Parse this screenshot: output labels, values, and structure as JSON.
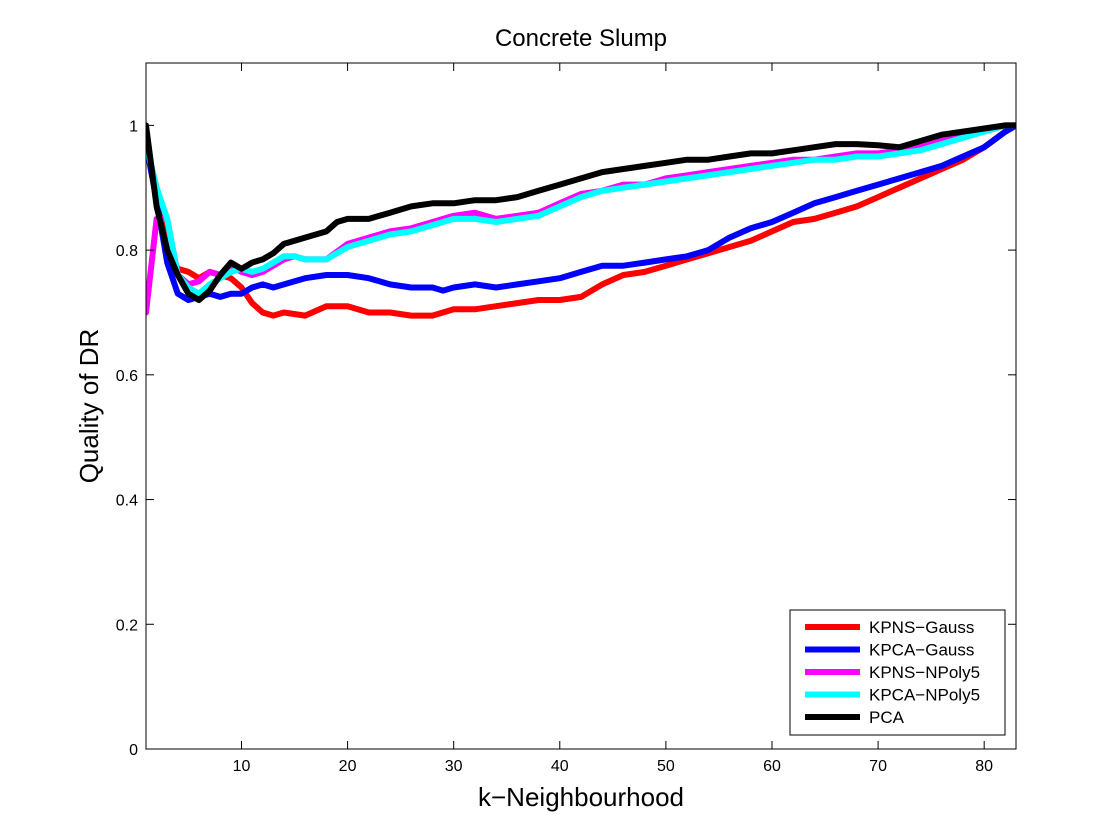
{
  "chart_data": {
    "type": "line",
    "title": "Concrete Slump",
    "xlabel": "k−Neighbourhood",
    "ylabel": "Quality of DR",
    "xlim": [
      1,
      83
    ],
    "ylim": [
      0,
      1.1
    ],
    "xticks": [
      10,
      20,
      30,
      40,
      50,
      60,
      70,
      80
    ],
    "yticks": [
      0,
      0.2,
      0.4,
      0.6,
      0.8,
      1
    ],
    "ytick_labels": [
      "0",
      "0.2",
      "0.4",
      "0.6",
      "0.8",
      "1"
    ],
    "grid": false,
    "legend_position": "bottom-right",
    "series": [
      {
        "name": "KPNS−Gauss",
        "color": "#ff0000",
        "points": [
          [
            1,
            0.97
          ],
          [
            2,
            0.9
          ],
          [
            3,
            0.8
          ],
          [
            4,
            0.77
          ],
          [
            5,
            0.765
          ],
          [
            6,
            0.755
          ],
          [
            7,
            0.765
          ],
          [
            8,
            0.76
          ],
          [
            9,
            0.755
          ],
          [
            10,
            0.74
          ],
          [
            11,
            0.715
          ],
          [
            12,
            0.7
          ],
          [
            13,
            0.695
          ],
          [
            14,
            0.7
          ],
          [
            16,
            0.695
          ],
          [
            18,
            0.71
          ],
          [
            20,
            0.71
          ],
          [
            22,
            0.7
          ],
          [
            24,
            0.7
          ],
          [
            26,
            0.695
          ],
          [
            28,
            0.695
          ],
          [
            30,
            0.705
          ],
          [
            32,
            0.705
          ],
          [
            34,
            0.71
          ],
          [
            36,
            0.715
          ],
          [
            38,
            0.72
          ],
          [
            40,
            0.72
          ],
          [
            42,
            0.725
          ],
          [
            44,
            0.745
          ],
          [
            46,
            0.76
          ],
          [
            48,
            0.765
          ],
          [
            50,
            0.775
          ],
          [
            52,
            0.785
          ],
          [
            54,
            0.795
          ],
          [
            56,
            0.805
          ],
          [
            58,
            0.815
          ],
          [
            60,
            0.83
          ],
          [
            62,
            0.845
          ],
          [
            64,
            0.85
          ],
          [
            66,
            0.86
          ],
          [
            68,
            0.87
          ],
          [
            70,
            0.885
          ],
          [
            72,
            0.9
          ],
          [
            74,
            0.915
          ],
          [
            76,
            0.93
          ],
          [
            78,
            0.945
          ],
          [
            80,
            0.965
          ],
          [
            82,
            0.99
          ],
          [
            83,
            1.0
          ]
        ]
      },
      {
        "name": "KPCA−Gauss",
        "color": "#0000ff",
        "points": [
          [
            1,
            0.97
          ],
          [
            2,
            0.88
          ],
          [
            3,
            0.78
          ],
          [
            4,
            0.73
          ],
          [
            5,
            0.72
          ],
          [
            6,
            0.725
          ],
          [
            7,
            0.73
          ],
          [
            8,
            0.725
          ],
          [
            9,
            0.73
          ],
          [
            10,
            0.73
          ],
          [
            11,
            0.74
          ],
          [
            12,
            0.745
          ],
          [
            13,
            0.74
          ],
          [
            14,
            0.745
          ],
          [
            16,
            0.755
          ],
          [
            18,
            0.76
          ],
          [
            20,
            0.76
          ],
          [
            22,
            0.755
          ],
          [
            24,
            0.745
          ],
          [
            26,
            0.74
          ],
          [
            28,
            0.74
          ],
          [
            29,
            0.735
          ],
          [
            30,
            0.74
          ],
          [
            32,
            0.745
          ],
          [
            34,
            0.74
          ],
          [
            36,
            0.745
          ],
          [
            38,
            0.75
          ],
          [
            40,
            0.755
          ],
          [
            42,
            0.765
          ],
          [
            44,
            0.775
          ],
          [
            46,
            0.775
          ],
          [
            48,
            0.78
          ],
          [
            50,
            0.785
          ],
          [
            52,
            0.79
          ],
          [
            54,
            0.8
          ],
          [
            56,
            0.82
          ],
          [
            58,
            0.835
          ],
          [
            60,
            0.845
          ],
          [
            62,
            0.86
          ],
          [
            64,
            0.875
          ],
          [
            66,
            0.885
          ],
          [
            68,
            0.895
          ],
          [
            70,
            0.905
          ],
          [
            72,
            0.915
          ],
          [
            74,
            0.925
          ],
          [
            76,
            0.935
          ],
          [
            78,
            0.95
          ],
          [
            80,
            0.965
          ],
          [
            82,
            0.99
          ],
          [
            83,
            1.0
          ]
        ]
      },
      {
        "name": "KPNS−NPoly5",
        "color": "#ff00ff",
        "points": [
          [
            1,
            0.7
          ],
          [
            2,
            0.85
          ],
          [
            3,
            0.85
          ],
          [
            4,
            0.76
          ],
          [
            5,
            0.745
          ],
          [
            6,
            0.75
          ],
          [
            7,
            0.765
          ],
          [
            8,
            0.76
          ],
          [
            9,
            0.775
          ],
          [
            10,
            0.765
          ],
          [
            11,
            0.76
          ],
          [
            12,
            0.765
          ],
          [
            13,
            0.775
          ],
          [
            14,
            0.785
          ],
          [
            15,
            0.79
          ],
          [
            16,
            0.785
          ],
          [
            18,
            0.785
          ],
          [
            20,
            0.81
          ],
          [
            22,
            0.82
          ],
          [
            24,
            0.83
          ],
          [
            26,
            0.835
          ],
          [
            28,
            0.845
          ],
          [
            30,
            0.855
          ],
          [
            32,
            0.86
          ],
          [
            34,
            0.85
          ],
          [
            36,
            0.855
          ],
          [
            38,
            0.86
          ],
          [
            40,
            0.875
          ],
          [
            42,
            0.89
          ],
          [
            44,
            0.895
          ],
          [
            46,
            0.905
          ],
          [
            48,
            0.905
          ],
          [
            50,
            0.915
          ],
          [
            52,
            0.92
          ],
          [
            54,
            0.925
          ],
          [
            56,
            0.93
          ],
          [
            58,
            0.935
          ],
          [
            60,
            0.94
          ],
          [
            62,
            0.945
          ],
          [
            64,
            0.945
          ],
          [
            66,
            0.95
          ],
          [
            68,
            0.955
          ],
          [
            70,
            0.955
          ],
          [
            72,
            0.96
          ],
          [
            74,
            0.965
          ],
          [
            76,
            0.975
          ],
          [
            78,
            0.985
          ],
          [
            80,
            0.99
          ],
          [
            82,
            1.0
          ],
          [
            83,
            1.0
          ]
        ]
      },
      {
        "name": "KPCA−NPoly5",
        "color": "#00ffff",
        "points": [
          [
            1,
            0.97
          ],
          [
            2,
            0.9
          ],
          [
            3,
            0.85
          ],
          [
            4,
            0.76
          ],
          [
            5,
            0.74
          ],
          [
            6,
            0.73
          ],
          [
            7,
            0.745
          ],
          [
            8,
            0.755
          ],
          [
            9,
            0.765
          ],
          [
            10,
            0.77
          ],
          [
            11,
            0.765
          ],
          [
            12,
            0.77
          ],
          [
            13,
            0.78
          ],
          [
            14,
            0.79
          ],
          [
            15,
            0.79
          ],
          [
            16,
            0.785
          ],
          [
            18,
            0.785
          ],
          [
            20,
            0.805
          ],
          [
            22,
            0.815
          ],
          [
            24,
            0.825
          ],
          [
            26,
            0.83
          ],
          [
            28,
            0.84
          ],
          [
            30,
            0.85
          ],
          [
            32,
            0.85
          ],
          [
            34,
            0.845
          ],
          [
            36,
            0.85
          ],
          [
            38,
            0.855
          ],
          [
            40,
            0.87
          ],
          [
            42,
            0.885
          ],
          [
            44,
            0.895
          ],
          [
            46,
            0.9
          ],
          [
            48,
            0.905
          ],
          [
            50,
            0.91
          ],
          [
            52,
            0.915
          ],
          [
            54,
            0.92
          ],
          [
            56,
            0.925
          ],
          [
            58,
            0.93
          ],
          [
            60,
            0.935
          ],
          [
            62,
            0.94
          ],
          [
            64,
            0.945
          ],
          [
            66,
            0.945
          ],
          [
            68,
            0.95
          ],
          [
            70,
            0.95
          ],
          [
            72,
            0.955
          ],
          [
            74,
            0.96
          ],
          [
            76,
            0.97
          ],
          [
            78,
            0.98
          ],
          [
            80,
            0.99
          ],
          [
            82,
            1.0
          ],
          [
            83,
            1.0
          ]
        ]
      },
      {
        "name": "PCA",
        "color": "#000000",
        "points": [
          [
            1,
            1.0
          ],
          [
            2,
            0.87
          ],
          [
            3,
            0.8
          ],
          [
            4,
            0.76
          ],
          [
            5,
            0.73
          ],
          [
            6,
            0.72
          ],
          [
            7,
            0.735
          ],
          [
            8,
            0.76
          ],
          [
            9,
            0.78
          ],
          [
            10,
            0.77
          ],
          [
            11,
            0.78
          ],
          [
            12,
            0.785
          ],
          [
            13,
            0.795
          ],
          [
            14,
            0.81
          ],
          [
            16,
            0.82
          ],
          [
            18,
            0.83
          ],
          [
            19,
            0.845
          ],
          [
            20,
            0.85
          ],
          [
            22,
            0.85
          ],
          [
            24,
            0.86
          ],
          [
            26,
            0.87
          ],
          [
            28,
            0.875
          ],
          [
            30,
            0.875
          ],
          [
            32,
            0.88
          ],
          [
            34,
            0.88
          ],
          [
            36,
            0.885
          ],
          [
            38,
            0.895
          ],
          [
            40,
            0.905
          ],
          [
            42,
            0.915
          ],
          [
            44,
            0.925
          ],
          [
            46,
            0.93
          ],
          [
            48,
            0.935
          ],
          [
            50,
            0.94
          ],
          [
            52,
            0.945
          ],
          [
            54,
            0.945
          ],
          [
            56,
            0.95
          ],
          [
            58,
            0.955
          ],
          [
            60,
            0.955
          ],
          [
            62,
            0.96
          ],
          [
            64,
            0.965
          ],
          [
            66,
            0.97
          ],
          [
            68,
            0.97
          ],
          [
            70,
            0.968
          ],
          [
            72,
            0.965
          ],
          [
            74,
            0.975
          ],
          [
            76,
            0.985
          ],
          [
            78,
            0.99
          ],
          [
            80,
            0.995
          ],
          [
            82,
            1.0
          ],
          [
            83,
            1.0
          ]
        ]
      }
    ]
  }
}
